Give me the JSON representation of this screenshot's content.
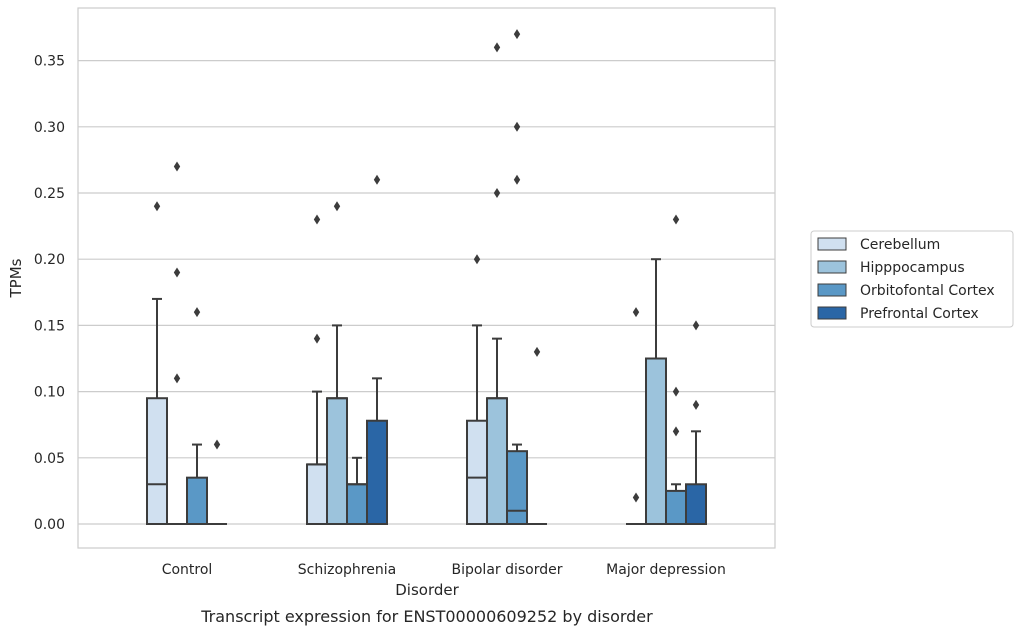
{
  "chart_data": {
    "type": "box",
    "title": "",
    "caption": "Transcript expression for ENST00000609252 by disorder",
    "xlabel": "Disorder",
    "ylabel": "TPMs",
    "ylim": [
      -0.018,
      0.388
    ],
    "yticks": [
      0.0,
      0.05,
      0.1,
      0.15,
      0.2,
      0.25,
      0.3,
      0.35
    ],
    "ytick_labels": [
      "0.00",
      "0.05",
      "0.10",
      "0.15",
      "0.20",
      "0.25",
      "0.30",
      "0.35"
    ],
    "grid": "horizontal",
    "legend_position": "right",
    "categories": [
      "Control",
      "Schizophrenia",
      "Bipolar disorder",
      "Major depression"
    ],
    "series": [
      {
        "name": "Cerebellum",
        "color": "#d0e0f0",
        "boxes": [
          {
            "q1": 0.0,
            "median": 0.03,
            "q3": 0.095,
            "whisker_low": 0.0,
            "whisker_high": 0.17,
            "outliers": [
              0.24
            ]
          },
          {
            "q1": 0.0,
            "median": 0.045,
            "q3": 0.045,
            "whisker_low": 0.0,
            "whisker_high": 0.1,
            "outliers": [
              0.14,
              0.23
            ]
          },
          {
            "q1": 0.0,
            "median": 0.035,
            "q3": 0.078,
            "whisker_low": 0.0,
            "whisker_high": 0.15,
            "outliers": [
              0.2
            ]
          },
          {
            "q1": 0.0,
            "median": 0.0,
            "q3": 0.0,
            "whisker_low": 0.0,
            "whisker_high": 0.0,
            "outliers": [
              0.02,
              0.16
            ]
          }
        ]
      },
      {
        "name": "Hipppocampus",
        "color": "#9cc3dc",
        "boxes": [
          {
            "q1": 0.0,
            "median": 0.0,
            "q3": 0.0,
            "whisker_low": 0.0,
            "whisker_high": 0.0,
            "outliers": [
              0.11,
              0.19,
              0.27
            ]
          },
          {
            "q1": 0.0,
            "median": 0.095,
            "q3": 0.095,
            "whisker_low": 0.0,
            "whisker_high": 0.15,
            "outliers": [
              0.24
            ]
          },
          {
            "q1": 0.0,
            "median": 0.095,
            "q3": 0.095,
            "whisker_low": 0.0,
            "whisker_high": 0.14,
            "outliers": [
              0.25,
              0.36
            ]
          },
          {
            "q1": 0.0,
            "median": 0.0,
            "q3": 0.125,
            "whisker_low": 0.0,
            "whisker_high": 0.2,
            "outliers": []
          }
        ]
      },
      {
        "name": "Orbitofontal Cortex",
        "color": "#5a98c6",
        "boxes": [
          {
            "q1": 0.0,
            "median": 0.0,
            "q3": 0.035,
            "whisker_low": 0.0,
            "whisker_high": 0.06,
            "outliers": [
              0.16
            ]
          },
          {
            "q1": 0.0,
            "median": 0.03,
            "q3": 0.03,
            "whisker_low": 0.0,
            "whisker_high": 0.05,
            "outliers": []
          },
          {
            "q1": 0.0,
            "median": 0.01,
            "q3": 0.055,
            "whisker_low": 0.0,
            "whisker_high": 0.06,
            "outliers": [
              0.26,
              0.3,
              0.37
            ]
          },
          {
            "q1": 0.0,
            "median": 0.0,
            "q3": 0.025,
            "whisker_low": 0.0,
            "whisker_high": 0.03,
            "outliers": [
              0.07,
              0.1,
              0.23
            ]
          }
        ]
      },
      {
        "name": "Prefrontal Cortex",
        "color": "#2a66a6",
        "boxes": [
          {
            "q1": 0.0,
            "median": 0.0,
            "q3": 0.0,
            "whisker_low": 0.0,
            "whisker_high": 0.0,
            "outliers": [
              0.06
            ]
          },
          {
            "q1": 0.0,
            "median": 0.0,
            "q3": 0.078,
            "whisker_low": 0.0,
            "whisker_high": 0.11,
            "outliers": [
              0.26
            ]
          },
          {
            "q1": 0.0,
            "median": 0.0,
            "q3": 0.0,
            "whisker_low": 0.0,
            "whisker_high": 0.0,
            "outliers": [
              0.13
            ]
          },
          {
            "q1": 0.0,
            "median": 0.0,
            "q3": 0.03,
            "whisker_low": 0.0,
            "whisker_high": 0.07,
            "outliers": [
              0.09,
              0.15
            ]
          }
        ]
      }
    ]
  },
  "colors": {
    "grid": "#cccccc",
    "frame": "#cccccc",
    "box_edge": "#3c3c3c",
    "outlier": "#3c3c3c"
  }
}
